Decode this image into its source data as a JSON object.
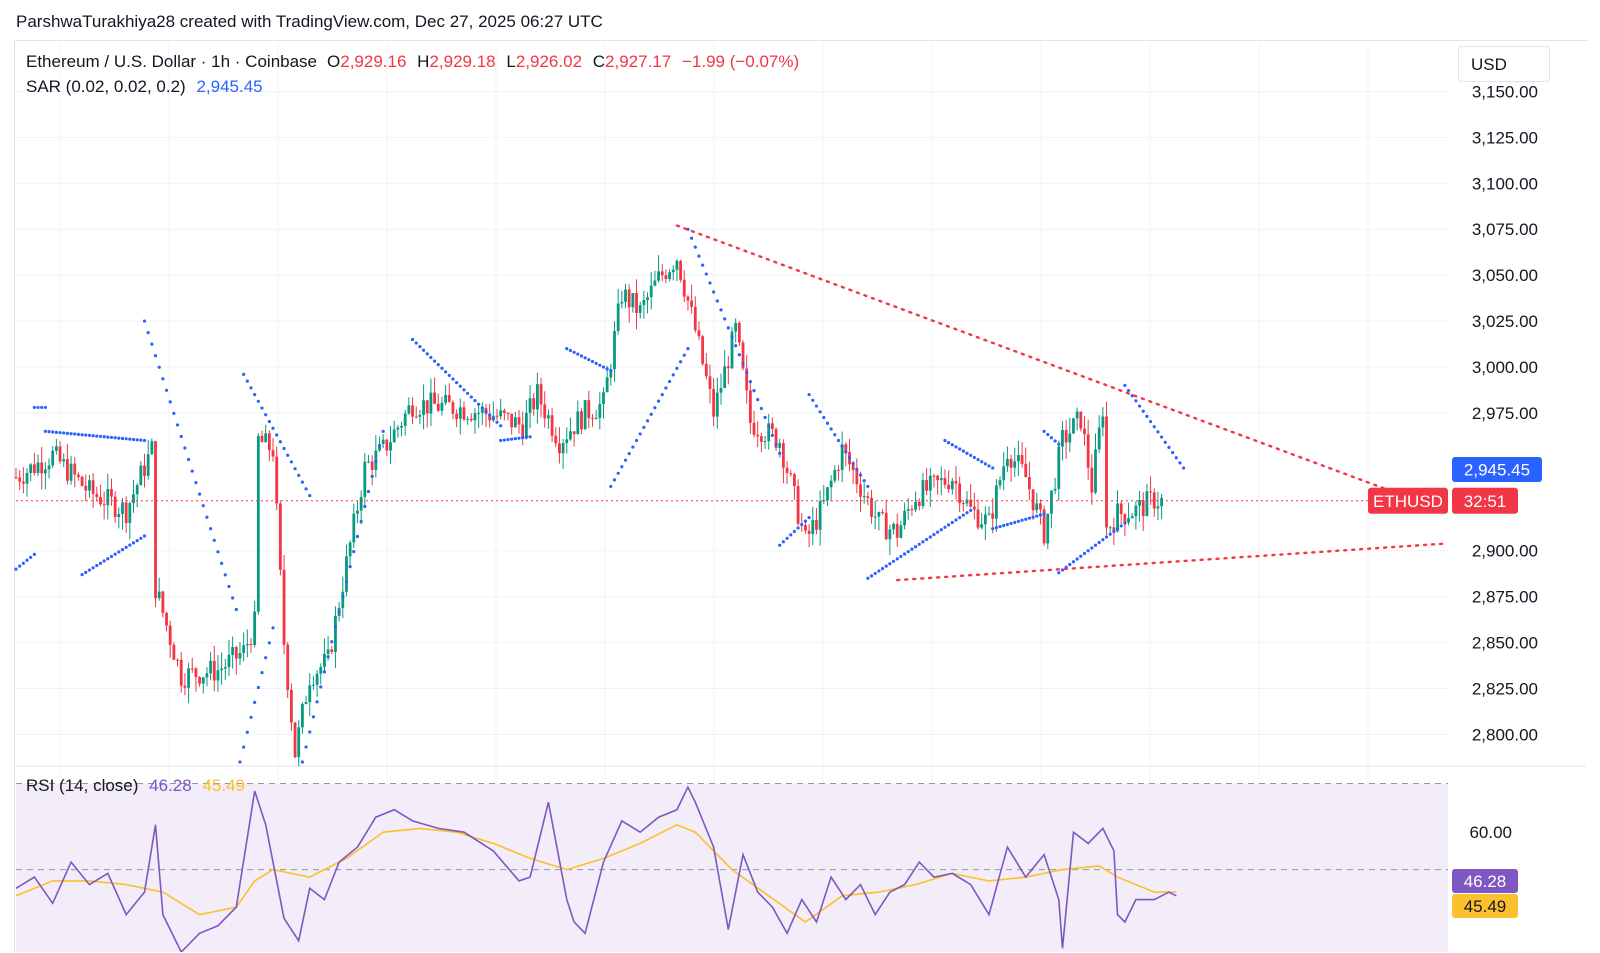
{
  "caption": "ParshwaTurakhiya28 created with TradingView.com, Dec 27, 2025 06:27 UTC",
  "symbol_line": {
    "symbol": "Ethereum / U.S. Dollar · 1h · Coinbase",
    "o_label": "O",
    "o_value": "2,929.16",
    "h_label": "H",
    "h_value": "2,929.18",
    "l_label": "L",
    "l_value": "2,926.02",
    "c_label": "C",
    "c_value": "2,927.17",
    "change": "−1.99 (−0.07%)"
  },
  "sar_line": {
    "label": "SAR (0.02, 0.02, 0.2)",
    "value": "2,945.45"
  },
  "rsi_line": {
    "label": "RSI (14, close)",
    "value": "46.28",
    "ma_value": "45.49"
  },
  "currency_button": "USD",
  "price_tags": {
    "sar": "2,945.45",
    "ticker": "ETHUSD",
    "countdown": "32:51",
    "rsi": "46.28",
    "rsi_ma": "45.49"
  },
  "colors": {
    "up": "#089981",
    "down": "#f23645",
    "sar": "#2962ff",
    "trendline": "#f23645",
    "rsi": "#7e57c2",
    "rsi_ma": "#fbc02d",
    "rsi_band": "#ede7f6"
  },
  "chart_data": [
    {
      "type": "candlestick",
      "title": "Ethereum / U.S. Dollar · 1h · Coinbase",
      "ylim": [
        2785,
        3178
      ],
      "y_ticks": [
        "3,150.00",
        "3,125.00",
        "3,100.00",
        "3,075.00",
        "3,050.00",
        "3,025.00",
        "3,000.00",
        "2,975.00",
        "2,900.00",
        "2,875.00",
        "2,850.00",
        "2,825.00",
        "2,800.00"
      ],
      "y_tick_values": [
        3150,
        3125,
        3100,
        3075,
        3050,
        3025,
        3000,
        2975,
        2900,
        2875,
        2850,
        2825,
        2800
      ],
      "last_price": 2927.17,
      "close_points": [
        [
          0,
          2940
        ],
        [
          10,
          2952
        ],
        [
          20,
          2932
        ],
        [
          30,
          2922
        ],
        [
          37,
          2955
        ],
        [
          38,
          2880
        ],
        [
          45,
          2832
        ],
        [
          55,
          2835
        ],
        [
          62,
          2845
        ],
        [
          65,
          2860
        ],
        [
          66,
          2960
        ],
        [
          70,
          2955
        ],
        [
          73,
          2850
        ],
        [
          76,
          2790
        ],
        [
          80,
          2832
        ],
        [
          85,
          2840
        ],
        [
          88,
          2872
        ],
        [
          95,
          2945
        ],
        [
          100,
          2955
        ],
        [
          108,
          2980
        ],
        [
          120,
          2978
        ],
        [
          130,
          2974
        ],
        [
          138,
          2968
        ],
        [
          142,
          2985
        ],
        [
          148,
          2960
        ],
        [
          155,
          2975
        ],
        [
          160,
          2980
        ],
        [
          165,
          3040
        ],
        [
          170,
          3030
        ],
        [
          175,
          3048
        ],
        [
          180,
          3060
        ],
        [
          185,
          3020
        ],
        [
          190,
          2975
        ],
        [
          196,
          3020
        ],
        [
          200,
          2970
        ],
        [
          208,
          2960
        ],
        [
          215,
          2905
        ],
        [
          220,
          2925
        ],
        [
          225,
          2955
        ],
        [
          230,
          2935
        ],
        [
          235,
          2915
        ],
        [
          240,
          2910
        ],
        [
          245,
          2930
        ],
        [
          250,
          2935
        ],
        [
          255,
          2940
        ],
        [
          260,
          2922
        ],
        [
          265,
          2915
        ],
        [
          270,
          2955
        ],
        [
          275,
          2940
        ],
        [
          280,
          2910
        ],
        [
          285,
          2960
        ],
        [
          290,
          2972
        ],
        [
          293,
          2935
        ],
        [
          296,
          2978
        ],
        [
          297,
          2912
        ],
        [
          300,
          2920
        ],
        [
          305,
          2922
        ],
        [
          310,
          2928
        ],
        [
          312,
          2927
        ]
      ],
      "sar_segments": [
        {
          "from": 0,
          "to": 5,
          "start": 2890,
          "end": 2898
        },
        {
          "from": 5,
          "to": 8,
          "start": 2978,
          "end": 2978
        },
        {
          "from": 8,
          "to": 35,
          "start": 2965,
          "end": 2960
        },
        {
          "from": 18,
          "to": 35,
          "start": 2887,
          "end": 2908
        },
        {
          "from": 35,
          "to": 60,
          "start": 3025,
          "end": 2868
        },
        {
          "from": 61,
          "to": 70,
          "start": 2785,
          "end": 2858
        },
        {
          "from": 62,
          "to": 80,
          "start": 2996,
          "end": 2930
        },
        {
          "from": 78,
          "to": 100,
          "start": 2785,
          "end": 2965
        },
        {
          "from": 108,
          "to": 132,
          "start": 3015,
          "end": 2968
        },
        {
          "from": 132,
          "to": 140,
          "start": 2960,
          "end": 2962
        },
        {
          "from": 150,
          "to": 162,
          "start": 3010,
          "end": 2998
        },
        {
          "from": 162,
          "to": 183,
          "start": 2935,
          "end": 3010
        },
        {
          "from": 183,
          "to": 208,
          "start": 3075,
          "end": 2953
        },
        {
          "from": 208,
          "to": 216,
          "start": 2903,
          "end": 2918
        },
        {
          "from": 216,
          "to": 232,
          "start": 2985,
          "end": 2935
        },
        {
          "from": 232,
          "to": 260,
          "start": 2885,
          "end": 2922
        },
        {
          "from": 253,
          "to": 266,
          "start": 2960,
          "end": 2945
        },
        {
          "from": 266,
          "to": 280,
          "start": 2912,
          "end": 2920
        },
        {
          "from": 280,
          "to": 284,
          "start": 2965,
          "end": 2958
        },
        {
          "from": 284,
          "to": 302,
          "start": 2888,
          "end": 2915
        },
        {
          "from": 302,
          "to": 318,
          "start": 2990,
          "end": 2945
        }
      ],
      "trendlines": [
        {
          "from": [
            180,
            3077
          ],
          "to": [
            390,
            2921
          ],
          "color": "#f23645",
          "style": "dotted"
        },
        {
          "from": [
            240,
            2884
          ],
          "to": [
            390,
            2904
          ],
          "color": "#f23645",
          "style": "dotted"
        }
      ]
    },
    {
      "type": "line",
      "title": "RSI (14, close)",
      "ylim": [
        28,
        75
      ],
      "y_ticks": [
        "60.00"
      ],
      "y_tick_values": [
        60
      ],
      "band": [
        40,
        70
      ],
      "dashed_level": 50,
      "rsi_points": [
        [
          0,
          45
        ],
        [
          5,
          48
        ],
        [
          10,
          41
        ],
        [
          15,
          52
        ],
        [
          20,
          46
        ],
        [
          25,
          49
        ],
        [
          30,
          38
        ],
        [
          35,
          44
        ],
        [
          38,
          62
        ],
        [
          40,
          38
        ],
        [
          45,
          28
        ],
        [
          50,
          33
        ],
        [
          55,
          35
        ],
        [
          60,
          40
        ],
        [
          65,
          71
        ],
        [
          68,
          62
        ],
        [
          70,
          52
        ],
        [
          73,
          37
        ],
        [
          77,
          31
        ],
        [
          80,
          45
        ],
        [
          84,
          42
        ],
        [
          88,
          52
        ],
        [
          93,
          56
        ],
        [
          98,
          64
        ],
        [
          103,
          66
        ],
        [
          108,
          63
        ],
        [
          115,
          61
        ],
        [
          122,
          60
        ],
        [
          130,
          55
        ],
        [
          137,
          47
        ],
        [
          140,
          48
        ],
        [
          145,
          68
        ],
        [
          150,
          42
        ],
        [
          152,
          36
        ],
        [
          155,
          33
        ],
        [
          160,
          52
        ],
        [
          165,
          63
        ],
        [
          170,
          60
        ],
        [
          175,
          64
        ],
        [
          180,
          66
        ],
        [
          183,
          72
        ],
        [
          185,
          68
        ],
        [
          190,
          56
        ],
        [
          194,
          34
        ],
        [
          198,
          54
        ],
        [
          202,
          44
        ],
        [
          206,
          40
        ],
        [
          210,
          33
        ],
        [
          214,
          42
        ],
        [
          218,
          36
        ],
        [
          222,
          48
        ],
        [
          226,
          42
        ],
        [
          230,
          46
        ],
        [
          234,
          38
        ],
        [
          238,
          44
        ],
        [
          242,
          46
        ],
        [
          246,
          52
        ],
        [
          250,
          48
        ],
        [
          255,
          49
        ],
        [
          260,
          46
        ],
        [
          265,
          38
        ],
        [
          270,
          56
        ],
        [
          275,
          48
        ],
        [
          280,
          54
        ],
        [
          284,
          42
        ],
        [
          285,
          29
        ],
        [
          288,
          60
        ],
        [
          292,
          57
        ],
        [
          296,
          61
        ],
        [
          299,
          55
        ],
        [
          300,
          38
        ],
        [
          302,
          36
        ],
        [
          305,
          42
        ],
        [
          310,
          42
        ],
        [
          314,
          44
        ],
        [
          316,
          43
        ]
      ],
      "rsi_ma_points": [
        [
          0,
          43
        ],
        [
          10,
          47
        ],
        [
          20,
          47
        ],
        [
          30,
          46
        ],
        [
          40,
          44
        ],
        [
          50,
          38
        ],
        [
          60,
          40
        ],
        [
          65,
          47
        ],
        [
          70,
          50
        ],
        [
          80,
          48
        ],
        [
          90,
          53
        ],
        [
          100,
          60
        ],
        [
          110,
          61
        ],
        [
          120,
          60
        ],
        [
          130,
          57
        ],
        [
          140,
          53
        ],
        [
          150,
          50
        ],
        [
          160,
          53
        ],
        [
          170,
          57
        ],
        [
          180,
          62
        ],
        [
          185,
          60
        ],
        [
          195,
          50
        ],
        [
          205,
          43
        ],
        [
          215,
          36
        ],
        [
          225,
          43
        ],
        [
          235,
          44
        ],
        [
          245,
          46
        ],
        [
          255,
          49
        ],
        [
          265,
          47
        ],
        [
          275,
          48
        ],
        [
          285,
          50
        ],
        [
          295,
          51
        ],
        [
          300,
          48
        ],
        [
          310,
          44
        ],
        [
          316,
          44
        ]
      ]
    }
  ]
}
